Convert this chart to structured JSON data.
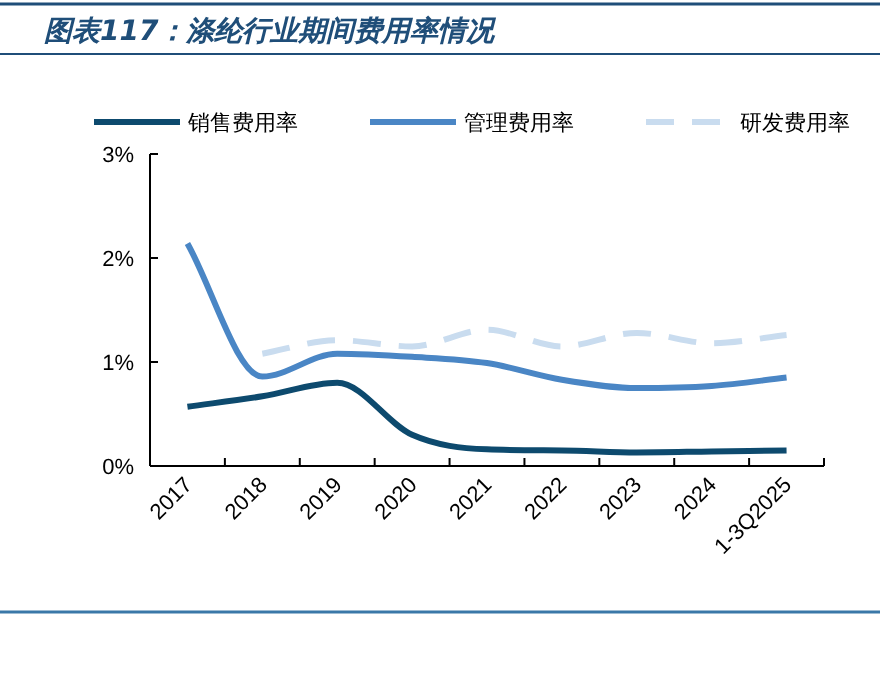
{
  "chart_data": {
    "type": "line",
    "title": "图表117：涤纶行业期间费用率情况",
    "categories": [
      "2017",
      "2018",
      "2019",
      "2020",
      "2021",
      "2022",
      "2023",
      "2024",
      "1-3Q2025"
    ],
    "series": [
      {
        "name": "销售费用率",
        "color": "#0d4a6e",
        "values": [
          0.57,
          0.67,
          0.8,
          0.3,
          0.16,
          0.15,
          0.13,
          0.14,
          0.15
        ]
      },
      {
        "name": "管理费用率",
        "color": "#4a86c5",
        "values": [
          2.14,
          0.86,
          1.08,
          1.05,
          0.99,
          0.83,
          0.75,
          0.77,
          0.85
        ]
      },
      {
        "name": "研发费用率",
        "color": "#c9dcef",
        "line_style": "dashed",
        "values": [
          null,
          1.08,
          1.21,
          1.15,
          1.31,
          1.15,
          1.28,
          1.18,
          1.26
        ]
      }
    ],
    "ylim": [
      0,
      3
    ],
    "yticks": [
      {
        "value": 0,
        "label": "0%"
      },
      {
        "value": 1,
        "label": "1%"
      },
      {
        "value": 2,
        "label": "2%"
      },
      {
        "value": 3,
        "label": "3%"
      }
    ],
    "grid": false,
    "legend": "top",
    "marker": "none",
    "line_style": "solid"
  }
}
